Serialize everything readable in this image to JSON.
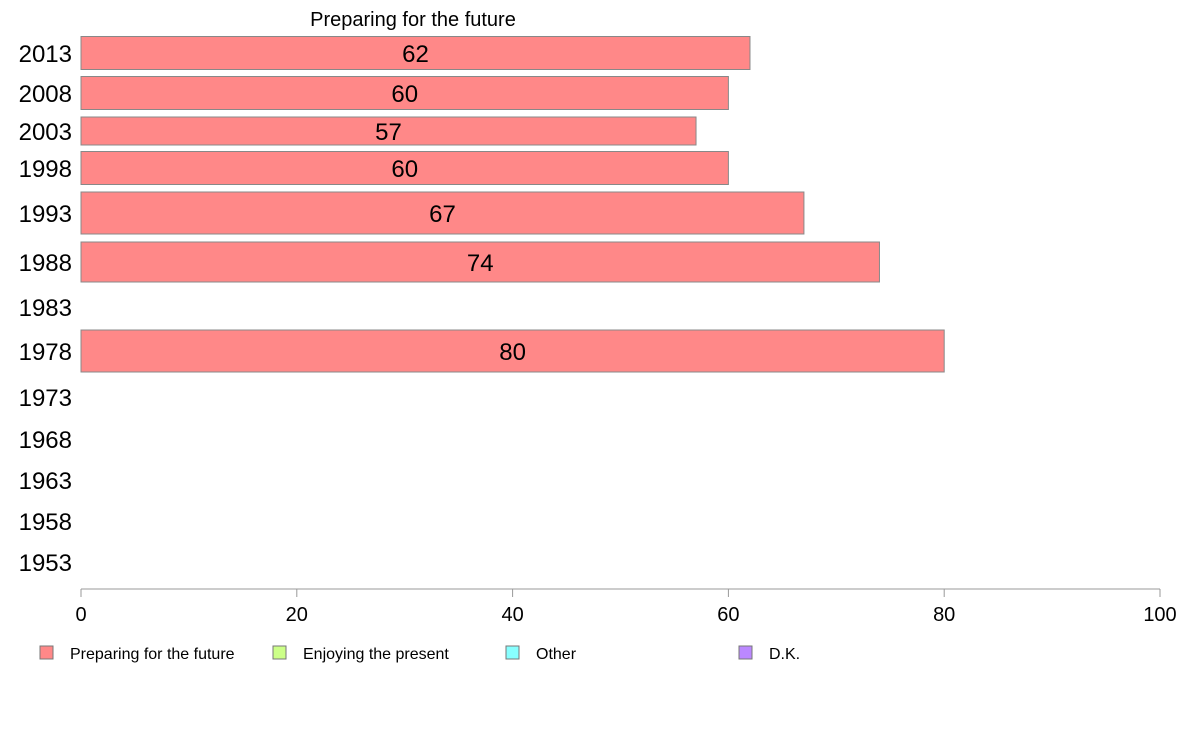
{
  "chart_data": {
    "type": "bar",
    "orientation": "horizontal",
    "title": "Preparing for the future",
    "categories": [
      "2013",
      "2008",
      "2003",
      "1998",
      "1993",
      "1988",
      "1983",
      "1978",
      "1973",
      "1968",
      "1963",
      "1958",
      "1953"
    ],
    "series": [
      {
        "name": "Preparing for the future",
        "color": "#ff8888",
        "values": [
          62,
          60,
          57,
          60,
          67,
          74,
          null,
          80,
          null,
          null,
          null,
          null,
          null
        ]
      },
      {
        "name": "Enjoying the present",
        "color": "#ccff88",
        "values": [
          null,
          null,
          null,
          null,
          null,
          null,
          null,
          null,
          null,
          null,
          null,
          null,
          null
        ]
      },
      {
        "name": "Other",
        "color": "#88ffff",
        "values": [
          null,
          null,
          null,
          null,
          null,
          null,
          null,
          null,
          null,
          null,
          null,
          null,
          null
        ]
      },
      {
        "name": "D.K.",
        "color": "#bb88ff",
        "values": [
          null,
          null,
          null,
          null,
          null,
          null,
          null,
          null,
          null,
          null,
          null,
          null,
          null
        ]
      }
    ],
    "data_labels": [
      "62",
      "60",
      "57",
      "60",
      "67",
      "74",
      "",
      "80",
      "",
      "",
      "",
      "",
      ""
    ],
    "xlim": [
      0,
      100
    ],
    "x_ticks": [
      0,
      20,
      40,
      60,
      80,
      100
    ],
    "x_tick_labels": [
      "0",
      "20",
      "40",
      "60",
      "80",
      "100"
    ],
    "xlabel": "",
    "ylabel": "",
    "grid": false,
    "legend_position": "bottom-left"
  }
}
